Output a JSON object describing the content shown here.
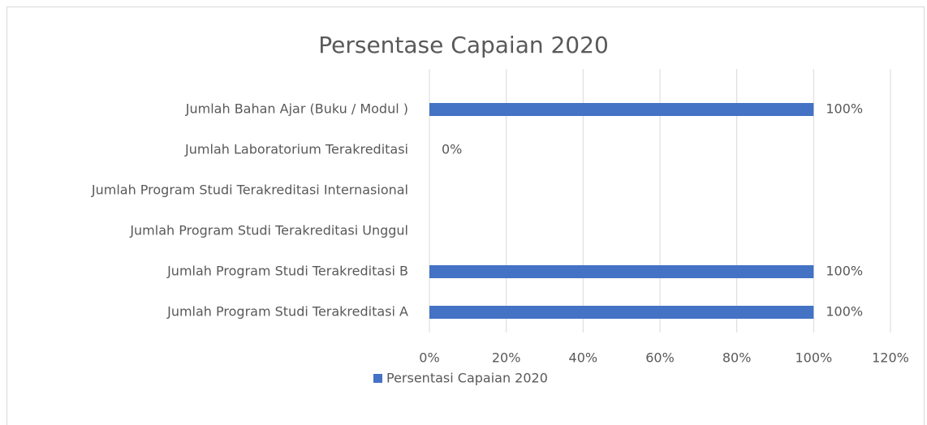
{
  "chart_data": {
    "type": "hbar",
    "title": "Persentase Capaian 2020",
    "categories": [
      "Jumlah Bahan Ajar (Buku / Modul )",
      "Jumlah Laboratorium Terakreditasi",
      "Jumlah Program Studi Terakreditasi Internasional",
      "Jumlah Program Studi Terakreditasi Unggul",
      "Jumlah Program Studi Terakreditasi B",
      "Jumlah Program Studi Terakreditasi A"
    ],
    "series": [
      {
        "name": "Persentasi Capaian 2020",
        "color": "#4472c4",
        "values": [
          100,
          0,
          null,
          null,
          100,
          100
        ],
        "value_labels": [
          "100%",
          "0%",
          null,
          null,
          "100%",
          "100%"
        ]
      }
    ],
    "xlim": [
      0,
      120
    ],
    "xticks": [
      {
        "value": 0,
        "label": "0%"
      },
      {
        "value": 20,
        "label": "20%"
      },
      {
        "value": 40,
        "label": "40%"
      },
      {
        "value": 60,
        "label": "60%"
      },
      {
        "value": 80,
        "label": "80%"
      },
      {
        "value": 100,
        "label": "100%"
      },
      {
        "value": 120,
        "label": "120%"
      }
    ],
    "grid": true,
    "legend": "bottom"
  }
}
